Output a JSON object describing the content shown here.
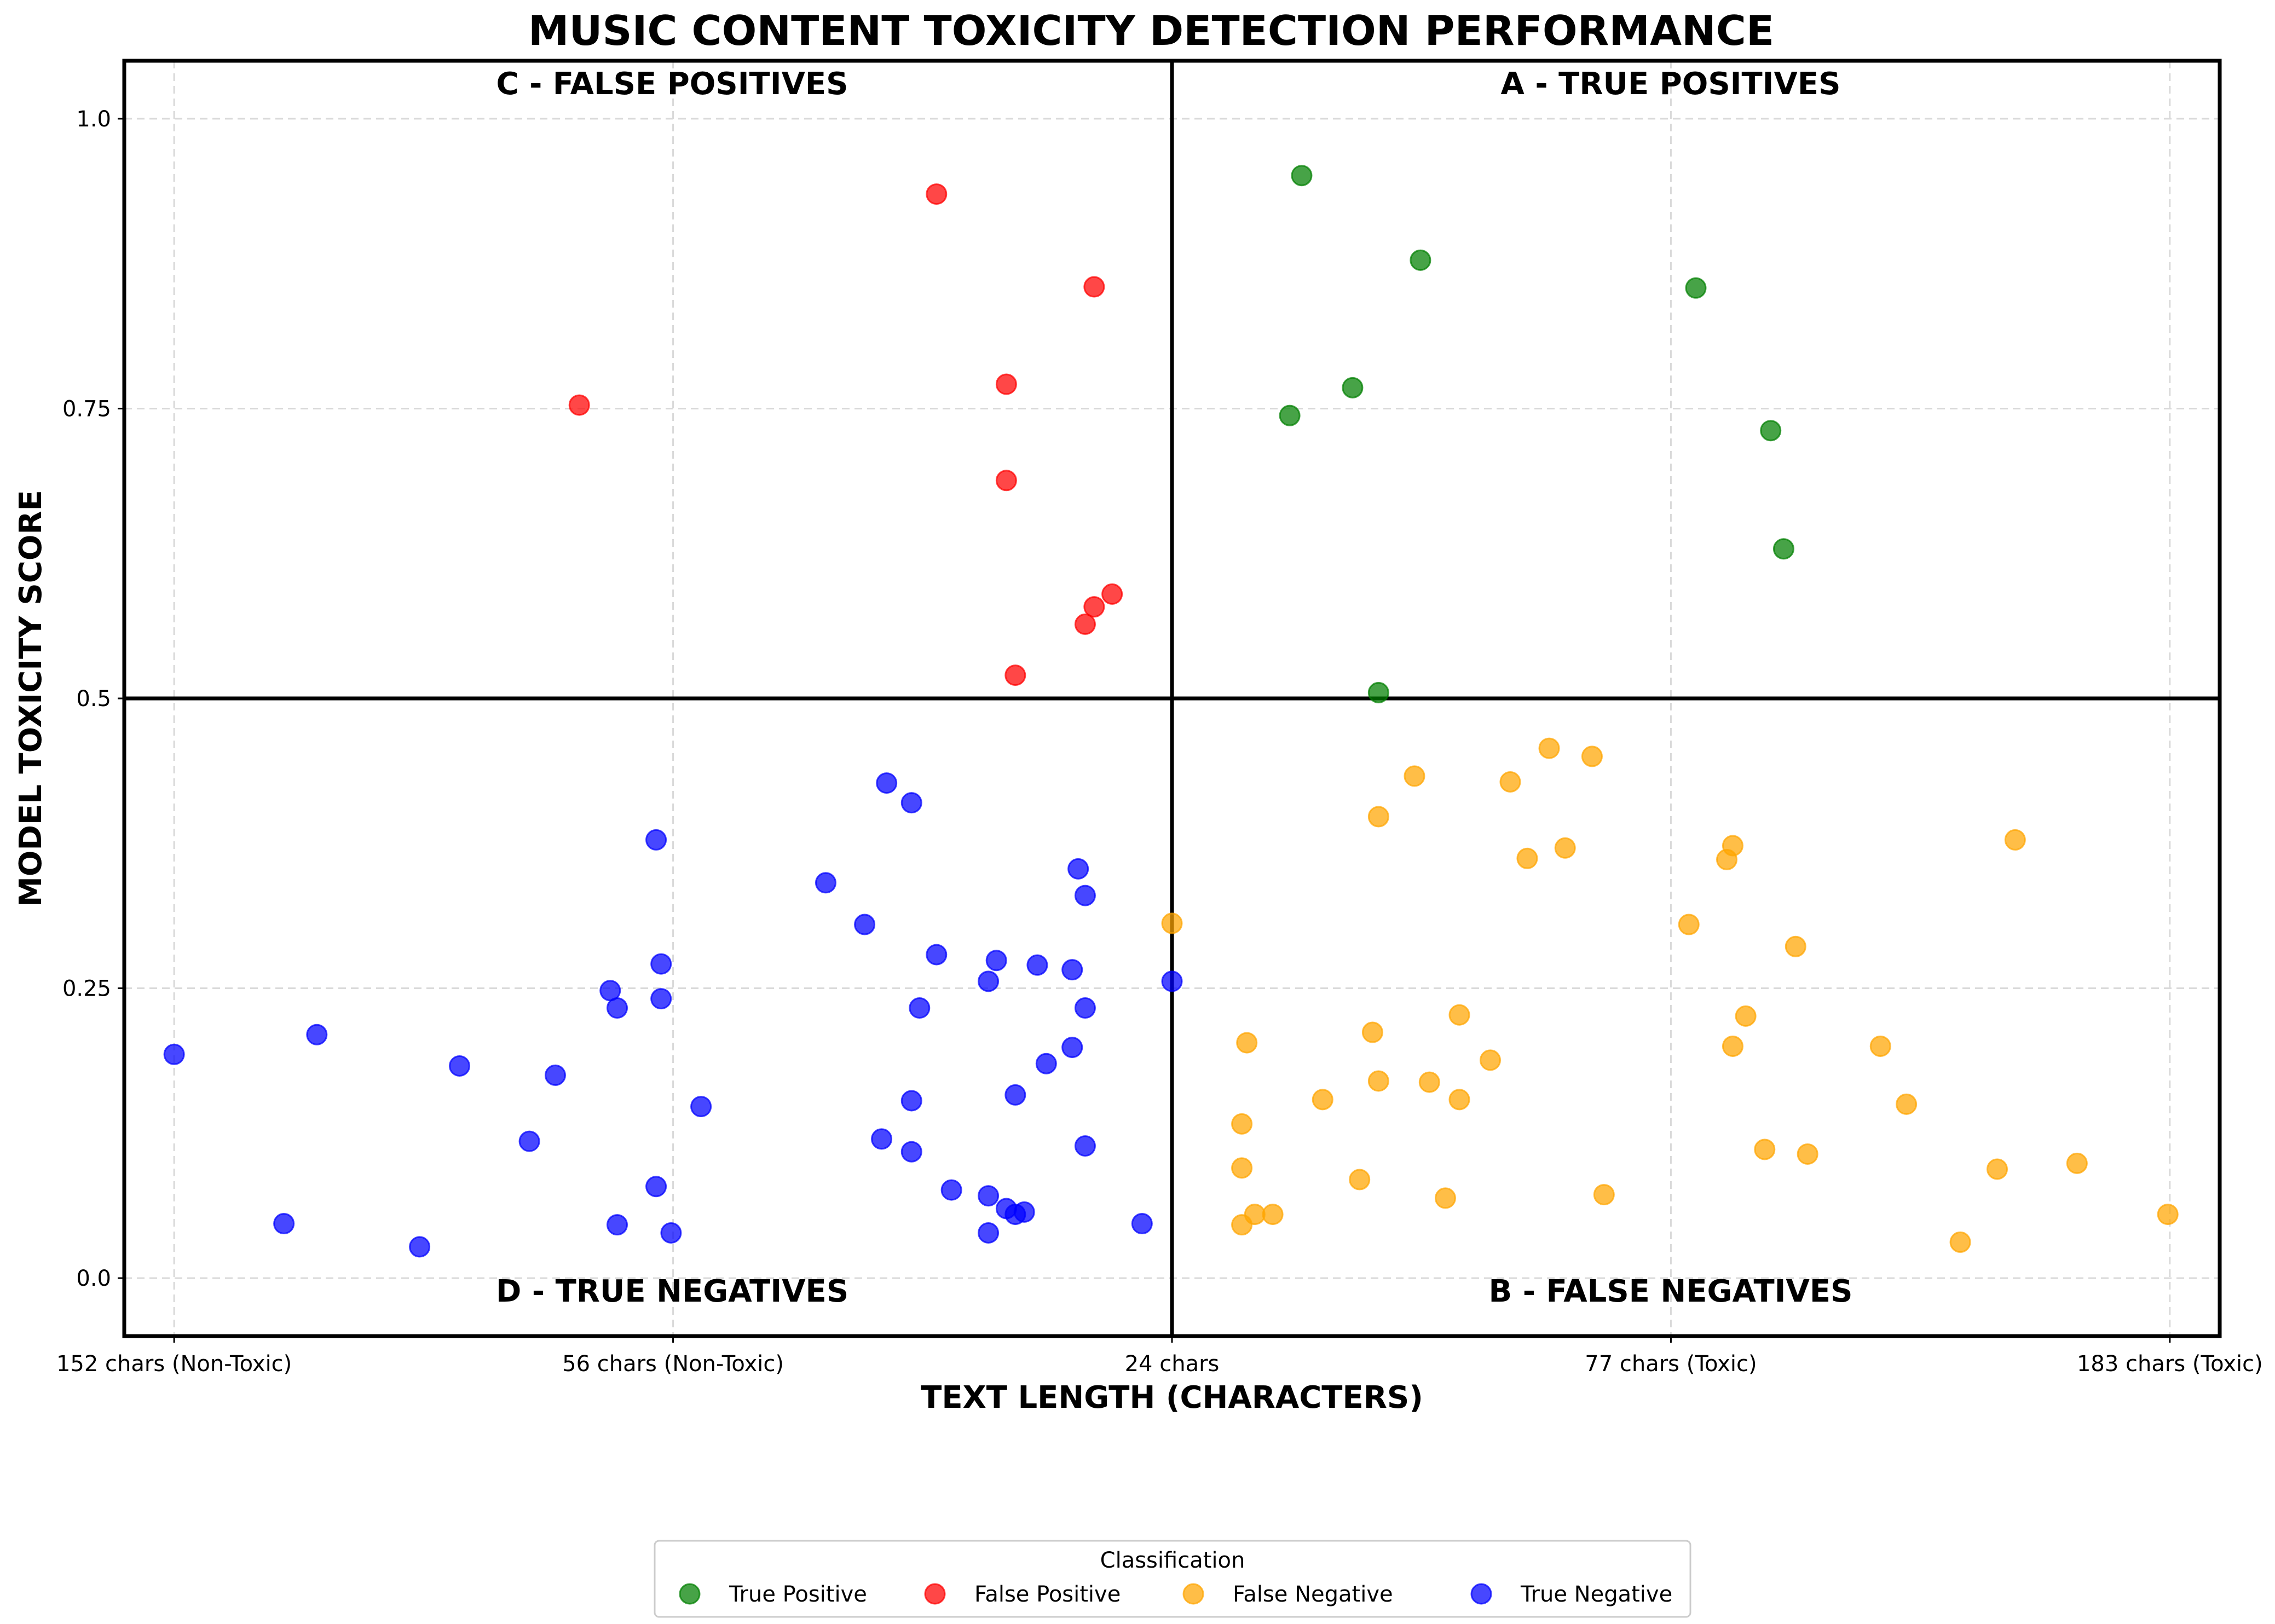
{
  "chart_data": {
    "type": "scatter",
    "title": "MUSIC CONTENT TOXICITY DETECTION PERFORMANCE",
    "xlabel": "TEXT LENGTH (CHARACTERS)",
    "ylabel": "MODEL TOXICITY SCORE",
    "xlim": [
      -0.05,
      2.05
    ],
    "ylim": [
      -0.05,
      1.05
    ],
    "x_ticks": [
      {
        "value": 0,
        "label": "152 chars (Non-Toxic)"
      },
      {
        "value": 0.5,
        "label": "56 chars (Non-Toxic)"
      },
      {
        "value": 1,
        "label": "24 chars"
      },
      {
        "value": 1.5,
        "label": "77 chars (Toxic)"
      },
      {
        "value": 2,
        "label": "183 chars (Toxic)"
      }
    ],
    "y_ticks": [
      {
        "value": 0,
        "label": "0.0"
      },
      {
        "value": 0.25,
        "label": "0.25"
      },
      {
        "value": 0.5,
        "label": "0.5"
      },
      {
        "value": 0.75,
        "label": "0.75"
      },
      {
        "value": 1,
        "label": "1.0"
      }
    ],
    "dividers": {
      "x": 1,
      "y": 0.5
    },
    "grid": true,
    "legend": {
      "title": "Classification",
      "position": "bottom-center"
    },
    "quadrant_labels": {
      "top_left": "C - FALSE POSITIVES",
      "top_right": "A - TRUE POSITIVES",
      "bottom_left": "D - TRUE NEGATIVES",
      "bottom_right": "B - FALSE NEGATIVES"
    },
    "series": [
      {
        "name": "True Positive",
        "color": "#008000",
        "points": [
          [
            1.13,
            0.951
          ],
          [
            1.249,
            0.878
          ],
          [
            1.525,
            0.854
          ],
          [
            1.181,
            0.768
          ],
          [
            1.118,
            0.744
          ],
          [
            1.6,
            0.731
          ],
          [
            1.613,
            0.629
          ],
          [
            1.207,
            0.505
          ]
        ]
      },
      {
        "name": "False Positive",
        "color": "#ff0000",
        "points": [
          [
            0.764,
            0.935
          ],
          [
            0.922,
            0.855
          ],
          [
            0.406,
            0.753
          ],
          [
            0.834,
            0.771
          ],
          [
            0.834,
            0.688
          ],
          [
            0.94,
            0.59
          ],
          [
            0.922,
            0.579
          ],
          [
            0.913,
            0.564
          ],
          [
            0.843,
            0.52
          ]
        ]
      },
      {
        "name": "False Negative",
        "color": "#ffa500",
        "points": [
          [
            1.378,
            0.457
          ],
          [
            1.421,
            0.45
          ],
          [
            1.243,
            0.433
          ],
          [
            1.339,
            0.428
          ],
          [
            1.207,
            0.398
          ],
          [
            1.394,
            0.371
          ],
          [
            1.562,
            0.373
          ],
          [
            1.845,
            0.378
          ],
          [
            1.356,
            0.362
          ],
          [
            1.556,
            0.361
          ],
          [
            1.0,
            0.306
          ],
          [
            1.518,
            0.305
          ],
          [
            1.625,
            0.286
          ],
          [
            1.288,
            0.227
          ],
          [
            1.575,
            0.226
          ],
          [
            1.201,
            0.212
          ],
          [
            1.075,
            0.203
          ],
          [
            1.562,
            0.2
          ],
          [
            1.71,
            0.2
          ],
          [
            1.319,
            0.188
          ],
          [
            1.207,
            0.17
          ],
          [
            1.258,
            0.169
          ],
          [
            1.151,
            0.154
          ],
          [
            1.288,
            0.154
          ],
          [
            1.736,
            0.15
          ],
          [
            1.07,
            0.133
          ],
          [
            1.594,
            0.111
          ],
          [
            1.637,
            0.107
          ],
          [
            1.907,
            0.099
          ],
          [
            1.07,
            0.095
          ],
          [
            1.827,
            0.094
          ],
          [
            1.188,
            0.085
          ],
          [
            1.274,
            0.069
          ],
          [
            1.433,
            0.072
          ],
          [
            1.083,
            0.055
          ],
          [
            1.101,
            0.055
          ],
          [
            1.07,
            0.046
          ],
          [
            1.998,
            0.055
          ],
          [
            1.79,
            0.031
          ]
        ]
      },
      {
        "name": "True Negative",
        "color": "#0000ff",
        "points": [
          [
            0.714,
            0.427
          ],
          [
            0.739,
            0.41
          ],
          [
            0.483,
            0.378
          ],
          [
            0.653,
            0.341
          ],
          [
            0.906,
            0.353
          ],
          [
            0.913,
            0.33
          ],
          [
            0.692,
            0.305
          ],
          [
            0.764,
            0.279
          ],
          [
            0.824,
            0.274
          ],
          [
            0.488,
            0.271
          ],
          [
            0.865,
            0.27
          ],
          [
            0.9,
            0.266
          ],
          [
            0.816,
            0.256
          ],
          [
            1.0,
            0.256
          ],
          [
            0.437,
            0.248
          ],
          [
            0.488,
            0.241
          ],
          [
            0.444,
            0.233
          ],
          [
            0.747,
            0.233
          ],
          [
            0.913,
            0.233
          ],
          [
            0.143,
            0.21
          ],
          [
            0.0,
            0.193
          ],
          [
            0.9,
            0.199
          ],
          [
            0.874,
            0.185
          ],
          [
            0.286,
            0.183
          ],
          [
            0.382,
            0.175
          ],
          [
            0.843,
            0.158
          ],
          [
            0.739,
            0.153
          ],
          [
            0.528,
            0.148
          ],
          [
            0.356,
            0.118
          ],
          [
            0.709,
            0.12
          ],
          [
            0.739,
            0.109
          ],
          [
            0.913,
            0.114
          ],
          [
            0.483,
            0.079
          ],
          [
            0.779,
            0.076
          ],
          [
            0.816,
            0.071
          ],
          [
            0.834,
            0.06
          ],
          [
            0.843,
            0.055
          ],
          [
            0.852,
            0.057
          ],
          [
            0.11,
            0.047
          ],
          [
            0.444,
            0.046
          ],
          [
            0.97,
            0.047
          ],
          [
            0.498,
            0.039
          ],
          [
            0.816,
            0.039
          ],
          [
            0.246,
            0.027
          ]
        ]
      }
    ]
  }
}
